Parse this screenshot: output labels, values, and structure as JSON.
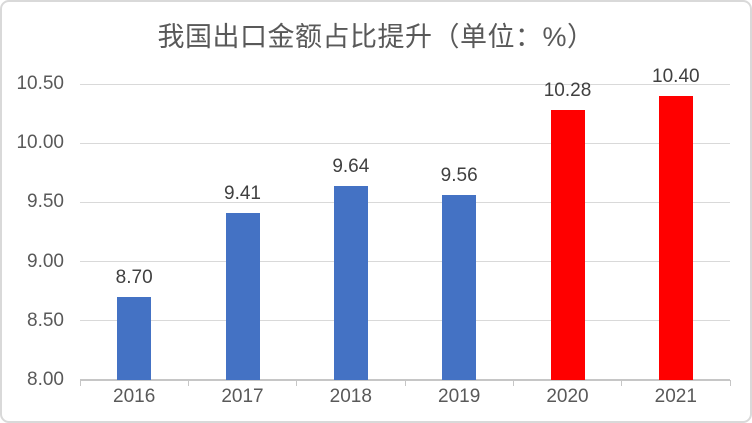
{
  "chart_data": {
    "type": "bar",
    "title": "我国出口金额占比提升（单位：%）",
    "categories": [
      "2016",
      "2017",
      "2018",
      "2019",
      "2020",
      "2021"
    ],
    "values": [
      8.7,
      9.41,
      9.64,
      9.56,
      10.28,
      10.4
    ],
    "data_labels": [
      "8.70",
      "9.41",
      "9.64",
      "9.56",
      "10.28",
      "10.40"
    ],
    "bar_colors": [
      "#4472C4",
      "#4472C4",
      "#4472C4",
      "#4472C4",
      "#FF0000",
      "#FF0000"
    ],
    "xlabel": "",
    "ylabel": "",
    "ylim": [
      8.0,
      10.5
    ],
    "ytick_step": 0.5,
    "ytick_labels": [
      "8.00",
      "8.50",
      "9.00",
      "9.50",
      "10.00",
      "10.50"
    ],
    "grid": true,
    "legend": false,
    "legend_position": "none"
  },
  "colors": {
    "bar_blue": "#4472C4",
    "bar_red": "#FF0000",
    "gridline": "#D9D9D9",
    "axis_line": "#C6C6C6",
    "axis_text": "#595959",
    "data_label_text": "#404040",
    "title_text": "#595959",
    "frame_border": "#D9D9D9",
    "background": "#FFFFFF"
  }
}
